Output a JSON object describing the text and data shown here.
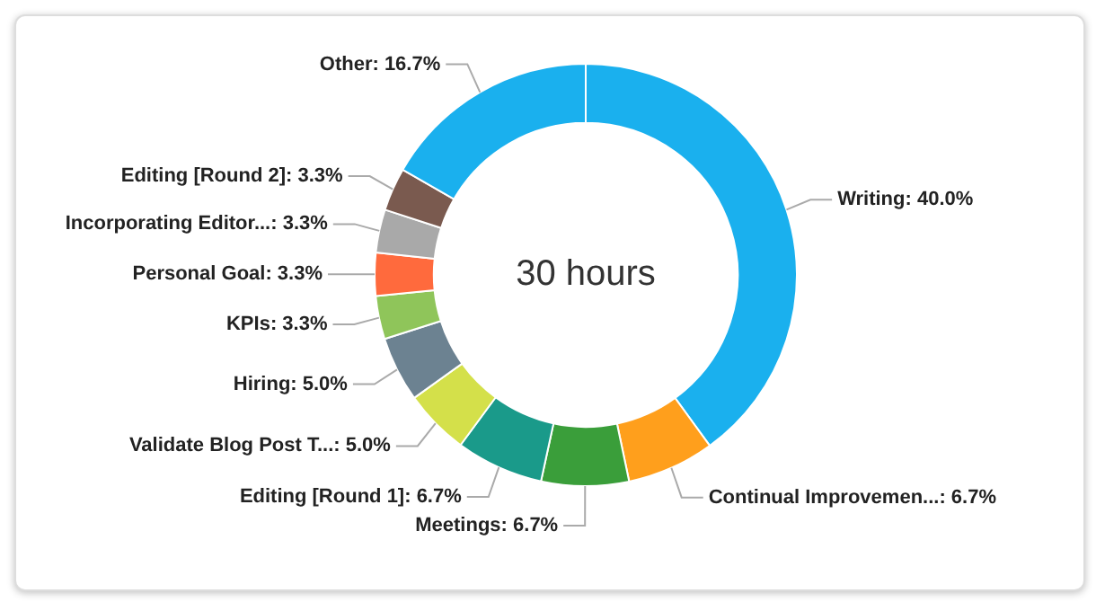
{
  "chart_data": {
    "type": "donut",
    "categories": [
      "Writing",
      "Continual Improvemen...",
      "Meetings",
      "Editing [Round 1]",
      "Validate Blog Post T...",
      "Hiring",
      "KPIs",
      "Personal Goal",
      "Incorporating Editor...",
      "Editing [Round 2]",
      "Other"
    ],
    "values": [
      40.0,
      6.7,
      6.7,
      6.7,
      5.0,
      5.0,
      3.3,
      3.3,
      3.3,
      3.3,
      16.7
    ],
    "value_labels": [
      "40.0%",
      "6.7%",
      "6.7%",
      "6.7%",
      "5.0%",
      "5.0%",
      "3.3%",
      "3.3%",
      "3.3%",
      "3.3%",
      "16.7%"
    ],
    "colors": [
      "#1ab0ee",
      "#ff9f1c",
      "#3a9e3a",
      "#1a9a8a",
      "#d4e04a",
      "#6c8291",
      "#8fc55a",
      "#ff6a3d",
      "#a9a9a9",
      "#7a5a4f",
      "#1ab0ee"
    ],
    "annotations": [
      "30 hours"
    ]
  }
}
